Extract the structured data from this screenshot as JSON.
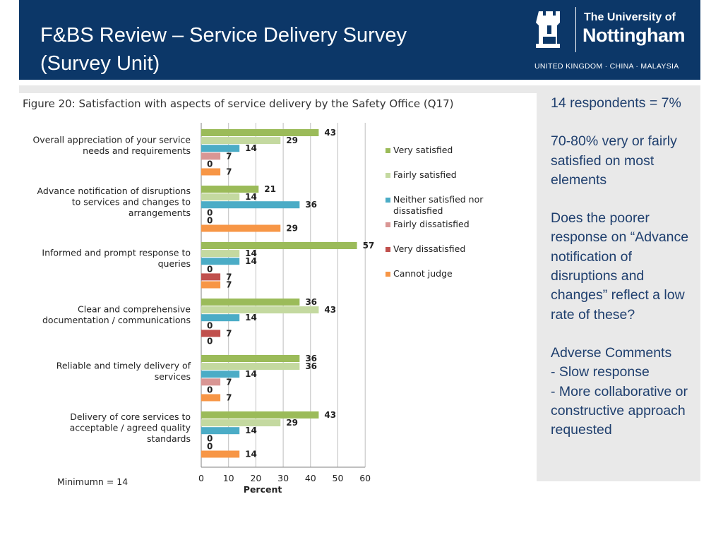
{
  "header": {
    "title_line1": "F&BS Review – Service Delivery Survey",
    "title_line2": "(Survey Unit)",
    "logo_line1": "The University of",
    "logo_line2": "Nottingham",
    "logo_sub": "UNITED KINGDOM · CHINA · MALAYSIA"
  },
  "notes": {
    "respondents": "14 respondents = 7%",
    "satisfaction": "70-80% very or fairly satisfied on most elements",
    "question": "Does the poorer response on “Advance notification of disruptions and changes” reflect  a low rate of these?",
    "adverse_title": "Adverse Comments",
    "adverse_items": [
      "- Slow response",
      "- More collaborative or constructive approach requested"
    ]
  },
  "chart_data": {
    "type": "bar",
    "orientation": "horizontal",
    "title": "Figure 20: Satisfaction with aspects of service delivery by the Safety Office (Q17)",
    "xlabel": "Percent",
    "ylabel": "",
    "xlim": [
      0,
      60
    ],
    "xticks": [
      0,
      10,
      20,
      30,
      40,
      50,
      60
    ],
    "grid": "vertical",
    "legend_position": "right",
    "footnote": "Minimumn = 14",
    "categories": [
      "Overall appreciation of your service needs and requirements",
      "Advance notification of disruptions to services and changes to arrangements",
      "Informed and prompt response to queries",
      "Clear and comprehensive documentation / communications",
      "Reliable and timely delivery of services",
      "Delivery of core services to acceptable / agreed quality standards"
    ],
    "category_lines": [
      [
        "Overall appreciation of your service",
        "needs and requirements"
      ],
      [
        "Advance notification of disruptions",
        "to services and changes to",
        "arrangements"
      ],
      [
        "Informed and prompt response to",
        "queries"
      ],
      [
        "Clear and comprehensive",
        "documentation / communications"
      ],
      [
        "Reliable and timely delivery of",
        "services"
      ],
      [
        "Delivery of core services to",
        "acceptable / agreed quality",
        "standards"
      ]
    ],
    "series": [
      {
        "name": "Very satisfied",
        "color": "#9bbb59",
        "values": [
          43,
          21,
          57,
          36,
          36,
          43
        ]
      },
      {
        "name": "Fairly satisfied",
        "color": "#c4d9a0",
        "values": [
          29,
          14,
          14,
          43,
          36,
          29
        ]
      },
      {
        "name": "Neither satisfied nor dissatisfied",
        "color": "#4bacc6",
        "values": [
          14,
          36,
          14,
          14,
          14,
          14
        ]
      },
      {
        "name": "Fairly dissatisfied",
        "color": "#d99694",
        "values": [
          7,
          0,
          0,
          0,
          7,
          0
        ]
      },
      {
        "name": "Very dissatisfied",
        "color": "#c0504d",
        "values": [
          0,
          0,
          7,
          7,
          0,
          0
        ]
      },
      {
        "name": "Cannot judge",
        "color": "#f79646",
        "values": [
          7,
          29,
          7,
          0,
          7,
          14
        ]
      }
    ],
    "legend_lines": [
      [
        "Very satisfied"
      ],
      [
        "Fairly satisfied"
      ],
      [
        "Neither satisfied nor",
        "dissatisfied"
      ],
      [
        "Fairly dissatisfied"
      ],
      [
        "Very dissatisfied"
      ],
      [
        "Cannot judge"
      ]
    ]
  }
}
